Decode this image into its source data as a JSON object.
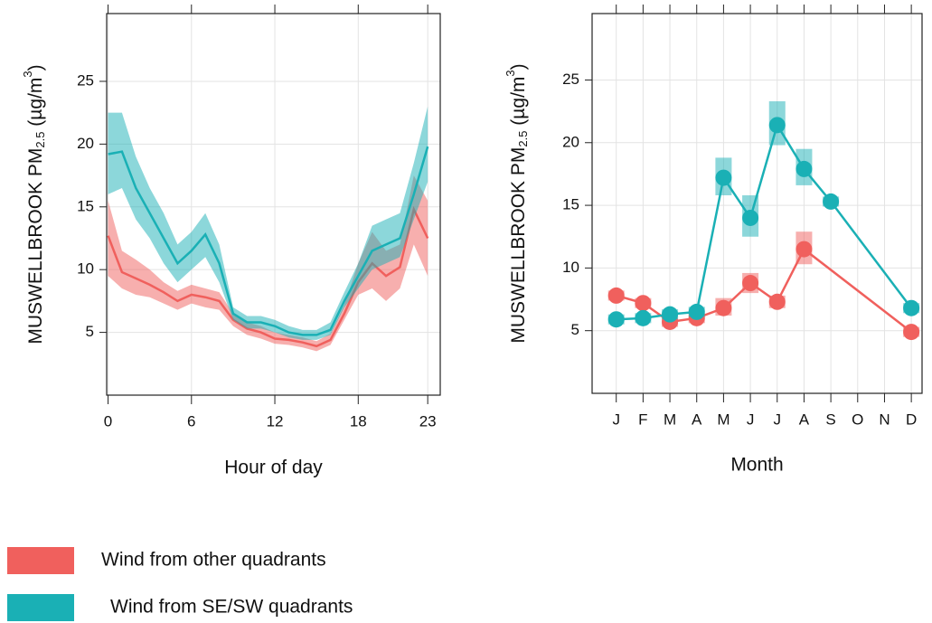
{
  "chart_data": [
    {
      "type": "line",
      "band": true,
      "xlabel": "Hour of day",
      "ylabel": [
        "MUSWELLBROOK PM",
        "2.5",
        " (µg/m",
        "3",
        ")"
      ],
      "x": [
        0,
        1,
        2,
        3,
        4,
        5,
        6,
        7,
        8,
        9,
        10,
        11,
        12,
        13,
        14,
        15,
        16,
        17,
        18,
        19,
        20,
        21,
        22,
        23
      ],
      "xlim": [
        -0.1,
        23.9
      ],
      "xticks": [
        0,
        6,
        12,
        18,
        23
      ],
      "ylim": [
        0,
        30.4
      ],
      "yticks": [
        5,
        10,
        15,
        20,
        25
      ],
      "grid": true,
      "legend": "bottom",
      "series": [
        {
          "name": "Wind from other quadrants",
          "color": "#f0605d",
          "values": [
            12.7,
            9.8,
            9.3,
            8.8,
            8.2,
            7.5,
            8.0,
            7.8,
            7.5,
            6.0,
            5.3,
            5.0,
            4.5,
            4.4,
            4.2,
            3.9,
            4.4,
            6.5,
            9.0,
            10.5,
            9.5,
            10.2,
            14.8,
            12.5
          ],
          "lower": [
            9.5,
            8.5,
            8.0,
            7.8,
            7.3,
            6.8,
            7.3,
            7.0,
            6.8,
            5.5,
            4.8,
            4.5,
            4.1,
            4.0,
            3.8,
            3.5,
            4.0,
            6.0,
            8.0,
            8.5,
            7.5,
            8.5,
            12.0,
            9.5
          ],
          "upper": [
            15.5,
            11.5,
            10.8,
            10.0,
            9.0,
            8.3,
            8.8,
            8.5,
            8.2,
            6.5,
            5.8,
            5.5,
            5.0,
            4.8,
            4.6,
            4.3,
            4.9,
            7.2,
            10.5,
            13.0,
            11.5,
            12.0,
            17.5,
            15.5
          ]
        },
        {
          "name": "Wind from SE/SW quadrants",
          "color": "#1ab0b5",
          "values": [
            19.2,
            19.4,
            16.5,
            14.5,
            12.5,
            10.5,
            11.5,
            12.8,
            10.5,
            6.5,
            5.8,
            5.8,
            5.5,
            5.0,
            4.8,
            4.8,
            5.2,
            7.5,
            9.5,
            11.5,
            12.0,
            12.5,
            16.0,
            19.8
          ],
          "lower": [
            16.0,
            16.5,
            14.0,
            12.5,
            10.5,
            9.0,
            10.0,
            11.0,
            9.0,
            6.0,
            5.3,
            5.3,
            5.0,
            4.6,
            4.4,
            4.4,
            4.8,
            7.0,
            8.5,
            10.0,
            10.5,
            11.0,
            14.0,
            17.0
          ],
          "upper": [
            22.5,
            22.5,
            19.0,
            16.5,
            14.5,
            12.0,
            13.0,
            14.5,
            12.0,
            7.0,
            6.3,
            6.3,
            6.0,
            5.5,
            5.2,
            5.2,
            5.8,
            8.2,
            10.5,
            13.5,
            14.0,
            14.5,
            18.5,
            23.0
          ]
        }
      ]
    },
    {
      "type": "line",
      "markers": true,
      "xlabel": "Month",
      "ylabel": [
        "MUSWELLBROOK PM",
        "2.5",
        " (µg/m",
        "3",
        ")"
      ],
      "xlim": [
        0.1,
        12.4
      ],
      "xticks": [
        {
          "value": 1,
          "label": "J"
        },
        {
          "value": 2,
          "label": "F"
        },
        {
          "value": 3,
          "label": "M"
        },
        {
          "value": 4,
          "label": "A"
        },
        {
          "value": 5,
          "label": "M"
        },
        {
          "value": 6,
          "label": "J"
        },
        {
          "value": 7,
          "label": "J"
        },
        {
          "value": 8,
          "label": "A"
        },
        {
          "value": 9,
          "label": "S"
        },
        {
          "value": 10,
          "label": "O"
        },
        {
          "value": 11,
          "label": "N"
        },
        {
          "value": 12,
          "label": "D"
        }
      ],
      "ylim": [
        0,
        30.3
      ],
      "yticks": [
        5,
        10,
        15,
        20,
        25
      ],
      "grid": true,
      "series": [
        {
          "name": "Wind from other quadrants",
          "color": "#f0605d",
          "x": [
            1,
            2,
            3,
            4,
            5,
            6,
            7,
            8,
            12
          ],
          "values": [
            7.8,
            7.2,
            5.7,
            6.0,
            6.8,
            8.8,
            7.3,
            11.5,
            4.9
          ],
          "lower": [
            7.4,
            6.8,
            5.3,
            5.6,
            6.2,
            8.0,
            6.8,
            10.3,
            4.5
          ],
          "upper": [
            8.2,
            7.6,
            6.1,
            6.4,
            7.6,
            9.6,
            7.8,
            12.9,
            5.3
          ]
        },
        {
          "name": "Wind from SE/SW quadrants",
          "color": "#1ab0b5",
          "x": [
            1,
            2,
            3,
            4,
            5,
            6,
            7,
            8,
            9,
            12
          ],
          "values": [
            5.9,
            6.0,
            6.3,
            6.5,
            17.2,
            14.0,
            21.4,
            17.9,
            15.3,
            6.8
          ],
          "lower": [
            5.5,
            5.6,
            5.9,
            6.1,
            15.8,
            12.5,
            19.8,
            16.6,
            14.9,
            6.4
          ],
          "upper": [
            6.3,
            6.4,
            6.7,
            6.9,
            18.8,
            15.8,
            23.3,
            19.5,
            15.7,
            7.2
          ]
        }
      ]
    }
  ]
}
